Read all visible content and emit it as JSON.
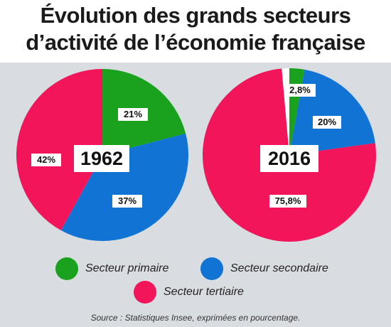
{
  "title": {
    "line1": "Évolution des grands secteurs",
    "line2": "d’activité de l’économie française"
  },
  "colors": {
    "primaire": "#1aa21e",
    "secondaire": "#1173d4",
    "tertiaire": "#f2155a",
    "gap": "#ffffff"
  },
  "chart_data": [
    {
      "type": "pie",
      "title": "1962",
      "slices": [
        {
          "name": "Secteur primaire",
          "value": 21,
          "label": "21%"
        },
        {
          "name": "Secteur secondaire",
          "value": 37,
          "label": "37%"
        },
        {
          "name": "Secteur tertiaire",
          "value": 42,
          "label": "42%"
        }
      ]
    },
    {
      "type": "pie",
      "title": "2016",
      "slices": [
        {
          "name": "Secteur primaire",
          "value": 2.8,
          "label": "2,8%"
        },
        {
          "name": "Secteur secondaire",
          "value": 20,
          "label": "20%"
        },
        {
          "name": "Secteur tertiaire",
          "value": 75.8,
          "label": "75,8%"
        },
        {
          "name": "",
          "value": 1.4,
          "label": ""
        }
      ]
    }
  ],
  "legend": {
    "primaire": "Secteur primaire",
    "secondaire": "Secteur secondaire",
    "tertiaire": "Secteur tertiaire"
  },
  "source": "Source : Statistiques Insee, exprimées en pourcentage."
}
